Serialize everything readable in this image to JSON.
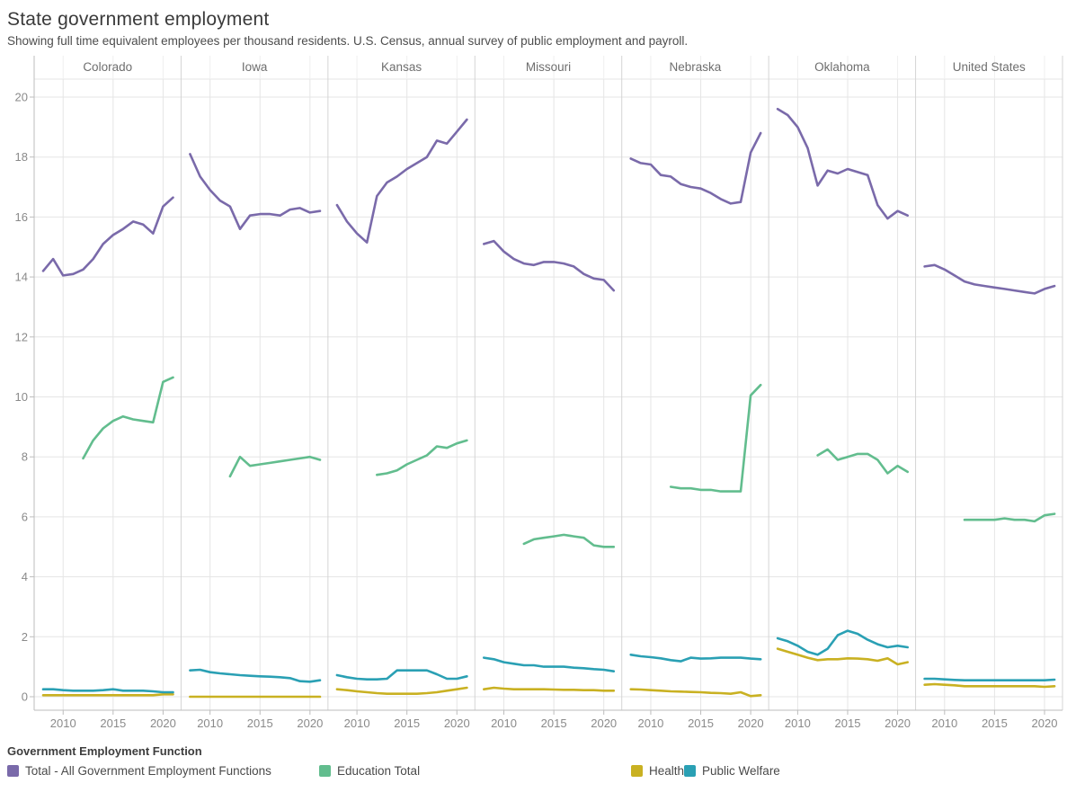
{
  "header": {
    "title": "State government employment",
    "subtitle": "Showing full time equivalent employees per thousand residents. U.S. Census, annual survey of public employment and payroll."
  },
  "legend": {
    "title": "Government Employment Function"
  },
  "chart_data": {
    "type": "line",
    "title": "State government employment",
    "subtitle": "Showing full time equivalent employees per thousand residents. U.S. Census, annual survey of public employment and payroll.",
    "layout": "small-multiples, 7 column facets sharing one y axis",
    "ylabel": "",
    "xlabel": "",
    "grid": true,
    "legend_position": "bottom-left",
    "y_ticks": [
      0,
      2,
      4,
      6,
      8,
      10,
      12,
      14,
      16,
      18,
      20
    ],
    "ylim": [
      -0.45,
      20.6
    ],
    "x_ticks": [
      2010,
      2015,
      2020
    ],
    "xlim": [
      2007.1,
      2021.8
    ],
    "years_total": [
      2008,
      2009,
      2010,
      2011,
      2012,
      2013,
      2014,
      2015,
      2016,
      2017,
      2018,
      2019,
      2020,
      2021
    ],
    "years_education": [
      2012,
      2013,
      2014,
      2015,
      2016,
      2017,
      2018,
      2019,
      2020,
      2021
    ],
    "series": [
      {
        "id": "total",
        "name": "Total - All Government Employment Functions",
        "color": "#7a6aaa",
        "start_year": 2008
      },
      {
        "id": "education",
        "name": "Education Total",
        "color": "#62bd8e",
        "start_year": 2012
      },
      {
        "id": "health",
        "name": "Health",
        "color": "#c9b122",
        "start_year": 2008
      },
      {
        "id": "public_welfare",
        "name": "Public Welfare",
        "color": "#2aa0b4",
        "start_year": 2008
      }
    ],
    "panels": [
      {
        "name": "Colorado",
        "total": [
          14.2,
          14.6,
          14.05,
          14.1,
          14.25,
          14.6,
          15.1,
          15.4,
          15.6,
          15.85,
          15.75,
          15.45,
          16.35,
          16.65
        ],
        "education": [
          7.95,
          8.55,
          8.95,
          9.2,
          9.35,
          9.25,
          9.2,
          9.15,
          10.5,
          10.65
        ],
        "health": [
          0.05,
          0.05,
          0.05,
          0.05,
          0.05,
          0.05,
          0.05,
          0.05,
          0.05,
          0.05,
          0.05,
          0.05,
          0.08,
          0.08
        ],
        "public_welfare": [
          0.25,
          0.25,
          0.22,
          0.2,
          0.2,
          0.2,
          0.22,
          0.25,
          0.2,
          0.2,
          0.2,
          0.18,
          0.15,
          0.15
        ]
      },
      {
        "name": "Iowa",
        "total": [
          18.1,
          17.35,
          16.9,
          16.55,
          16.35,
          15.6,
          16.05,
          16.1,
          16.1,
          16.05,
          16.25,
          16.3,
          16.15,
          16.2
        ],
        "education": [
          7.35,
          8.0,
          7.7,
          7.75,
          7.8,
          7.85,
          7.9,
          7.95,
          8.0,
          7.9
        ],
        "health": [
          0.0,
          0.0,
          0.0,
          0.0,
          0.0,
          0.0,
          0.0,
          0.0,
          0.0,
          0.0,
          0.0,
          0.0,
          0.0,
          0.0
        ],
        "public_welfare": [
          0.88,
          0.9,
          0.82,
          0.78,
          0.75,
          0.72,
          0.7,
          0.68,
          0.67,
          0.65,
          0.62,
          0.52,
          0.5,
          0.55
        ]
      },
      {
        "name": "Kansas",
        "total": [
          16.4,
          15.85,
          15.45,
          15.15,
          16.7,
          17.15,
          17.35,
          17.6,
          17.8,
          18.0,
          18.55,
          18.45,
          18.85,
          19.25
        ],
        "education": [
          7.4,
          7.45,
          7.55,
          7.75,
          7.9,
          8.05,
          8.35,
          8.3,
          8.45,
          8.55
        ],
        "health": [
          0.25,
          0.22,
          0.18,
          0.15,
          0.12,
          0.1,
          0.1,
          0.1,
          0.1,
          0.12,
          0.15,
          0.2,
          0.25,
          0.3
        ],
        "public_welfare": [
          0.72,
          0.65,
          0.6,
          0.58,
          0.58,
          0.6,
          0.88,
          0.88,
          0.88,
          0.88,
          0.75,
          0.6,
          0.6,
          0.68
        ]
      },
      {
        "name": "Missouri",
        "total": [
          15.1,
          15.2,
          14.85,
          14.6,
          14.45,
          14.4,
          14.5,
          14.5,
          14.45,
          14.35,
          14.1,
          13.95,
          13.9,
          13.55
        ],
        "education": [
          5.1,
          5.25,
          5.3,
          5.35,
          5.4,
          5.35,
          5.3,
          5.05,
          5.0,
          5.0
        ],
        "health": [
          0.25,
          0.3,
          0.27,
          0.25,
          0.25,
          0.25,
          0.25,
          0.24,
          0.23,
          0.23,
          0.22,
          0.22,
          0.2,
          0.2
        ],
        "public_welfare": [
          1.3,
          1.25,
          1.15,
          1.1,
          1.05,
          1.05,
          1.0,
          1.0,
          1.0,
          0.97,
          0.95,
          0.92,
          0.9,
          0.85
        ]
      },
      {
        "name": "Nebraska",
        "total": [
          17.95,
          17.8,
          17.75,
          17.4,
          17.35,
          17.1,
          17.0,
          16.95,
          16.8,
          16.6,
          16.45,
          16.5,
          18.15,
          18.8
        ],
        "education": [
          7.0,
          6.95,
          6.95,
          6.9,
          6.9,
          6.85,
          6.85,
          6.85,
          10.05,
          10.4
        ],
        "health": [
          0.25,
          0.24,
          0.22,
          0.2,
          0.18,
          0.17,
          0.16,
          0.15,
          0.13,
          0.12,
          0.1,
          0.15,
          0.02,
          0.05
        ],
        "public_welfare": [
          1.4,
          1.35,
          1.32,
          1.28,
          1.22,
          1.18,
          1.3,
          1.27,
          1.28,
          1.3,
          1.3,
          1.3,
          1.27,
          1.25
        ]
      },
      {
        "name": "Oklahoma",
        "total": [
          19.6,
          19.4,
          19.0,
          18.3,
          17.05,
          17.55,
          17.45,
          17.6,
          17.5,
          17.4,
          16.4,
          15.95,
          16.2,
          16.05
        ],
        "education": [
          8.05,
          8.25,
          7.9,
          8.0,
          8.1,
          8.1,
          7.9,
          7.45,
          7.7,
          7.5
        ],
        "health": [
          1.6,
          1.5,
          1.4,
          1.3,
          1.22,
          1.25,
          1.25,
          1.28,
          1.27,
          1.25,
          1.2,
          1.28,
          1.08,
          1.15
        ],
        "public_welfare": [
          1.95,
          1.85,
          1.7,
          1.5,
          1.4,
          1.6,
          2.05,
          2.2,
          2.1,
          1.9,
          1.75,
          1.65,
          1.7,
          1.65
        ]
      },
      {
        "name": "United States",
        "total": [
          14.35,
          14.4,
          14.25,
          14.05,
          13.85,
          13.75,
          13.7,
          13.65,
          13.6,
          13.55,
          13.5,
          13.45,
          13.6,
          13.7
        ],
        "education": [
          5.9,
          5.9,
          5.9,
          5.9,
          5.95,
          5.9,
          5.9,
          5.85,
          6.05,
          6.1
        ],
        "health": [
          0.4,
          0.42,
          0.4,
          0.38,
          0.35,
          0.35,
          0.35,
          0.35,
          0.35,
          0.35,
          0.35,
          0.35,
          0.33,
          0.35
        ],
        "public_welfare": [
          0.6,
          0.6,
          0.58,
          0.56,
          0.55,
          0.55,
          0.55,
          0.55,
          0.55,
          0.55,
          0.55,
          0.55,
          0.55,
          0.57
        ]
      }
    ],
    "colors": {
      "total": "#7a6aaa",
      "education": "#62bd8e",
      "health": "#c9b122",
      "public_welfare": "#2aa0b4",
      "gridline": "#e5e5e5",
      "panel_border": "#d4d4d4",
      "axis_line": "#bdbdbd",
      "tick_label": "#8a8a8a",
      "facet_label": "#6e6e6e"
    }
  }
}
